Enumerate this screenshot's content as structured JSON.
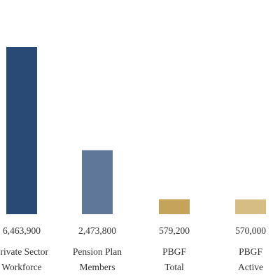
{
  "colors": {
    "background": "#ffffff",
    "text": "#333333"
  },
  "chart_data": {
    "type": "bar",
    "categories": [
      [
        "Private Sector",
        "Workforce"
      ],
      [
        "Pension Plan",
        "Members"
      ],
      [
        "PBGF",
        "Total"
      ],
      [
        "PBGF",
        "Active"
      ]
    ],
    "values": [
      6463900,
      2473800,
      579200,
      570000
    ],
    "value_labels": [
      "6,463,900",
      "2,473,800",
      "579,200",
      "570,000"
    ],
    "bar_colors": [
      "#284a75",
      "#5f7799",
      "#c4a45a",
      "#d5bd83"
    ],
    "ylim": [
      0,
      6463900
    ],
    "grid": false,
    "legend": "none"
  }
}
